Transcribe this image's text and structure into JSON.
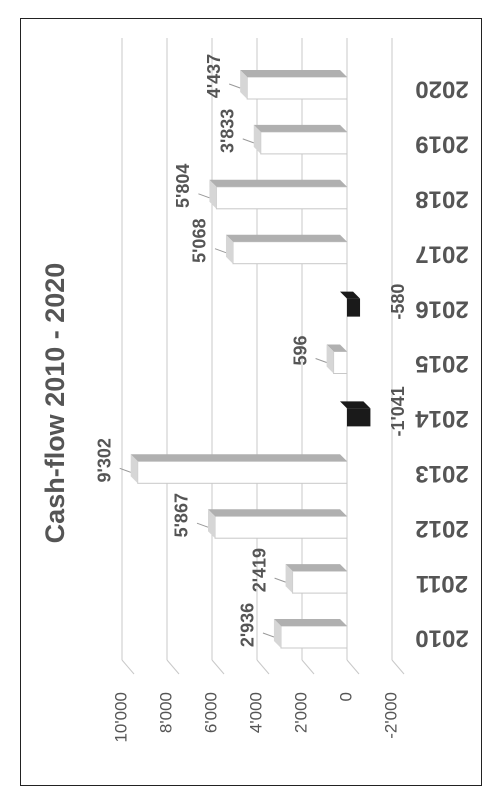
{
  "chart_data": {
    "type": "bar",
    "title": "Cash-flow 2010 - 2020",
    "categories": [
      "2010",
      "2011",
      "2012",
      "2013",
      "2014",
      "2015",
      "2016",
      "2017",
      "2018",
      "2019",
      "2020"
    ],
    "values": [
      2936,
      2419,
      5867,
      9302,
      -1041,
      596,
      -580,
      5068,
      5804,
      3833,
      4437
    ],
    "value_labels": [
      "2'936",
      "2'419",
      "5'867",
      "9'302",
      "-1'041",
      "596",
      "-580",
      "5'068",
      "5'804",
      "3'833",
      "4'437"
    ],
    "ylim": [
      -2000,
      10000
    ],
    "yticks": [
      -2000,
      0,
      2000,
      4000,
      6000,
      8000,
      10000
    ],
    "ytick_labels": [
      "-2'000",
      "0",
      "2'000",
      "4'000",
      "6'000",
      "8'000",
      "10'000"
    ],
    "grid": true,
    "orientation": "rotated 90° clockwise",
    "colors": {
      "positive_face": "#ffffff",
      "positive_top": "#b0b0b0",
      "negative": "#1a1a1a",
      "grid": "#c8c8c8",
      "text": "#555555"
    }
  }
}
